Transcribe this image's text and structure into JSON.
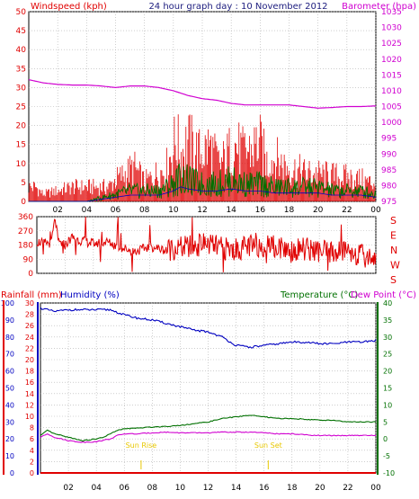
{
  "colors": {
    "wind": "#e00000",
    "gust": "#e00000",
    "wind_avg_green": "#007000",
    "wind_blue": "#0000c0",
    "baro": "#d000d0",
    "title": "#202080",
    "dir": "#e00000",
    "humidity": "#0000c0",
    "temperature": "#007000",
    "dewpoint": "#d000d0",
    "rain": "#e00000",
    "sun": "#e8c800",
    "grid": "#b0b0b0",
    "frame": "#000000"
  },
  "chart_data": [
    {
      "type": "line",
      "panel": "wind-baro",
      "title": "24 hour graph day : 10 November 2012",
      "left_label": "Windspeed (kph)",
      "right_label": "Barometer (hpa)",
      "ylim_left": [
        0,
        50
      ],
      "ylim_right": [
        975,
        1035
      ],
      "left_ticks": [
        "0",
        "5",
        "10",
        "15",
        "20",
        "25",
        "30",
        "35",
        "40",
        "45",
        "50"
      ],
      "right_ticks": [
        "975",
        "980",
        "985",
        "990",
        "995",
        "1000",
        "1005",
        "1010",
        "1015",
        "1020",
        "1025",
        "1030",
        "1035"
      ],
      "x_ticks": [
        "02",
        "04",
        "06",
        "08",
        "10",
        "12",
        "14",
        "16",
        "18",
        "20",
        "22",
        "00"
      ],
      "series": [
        {
          "name": "Barometer",
          "x": [
            0,
            1,
            2,
            3,
            4,
            5,
            6,
            7,
            8,
            9,
            10,
            11,
            12,
            13,
            14,
            15,
            16,
            17,
            18,
            19,
            20,
            21,
            22,
            23,
            24
          ],
          "values": [
            1013.5,
            1012.5,
            1012.0,
            1011.8,
            1011.8,
            1011.5,
            1011.0,
            1011.5,
            1011.5,
            1011.0,
            1010.0,
            1008.5,
            1007.5,
            1007.0,
            1006.0,
            1005.5,
            1005.5,
            1005.5,
            1005.5,
            1005.0,
            1004.5,
            1004.7,
            1005.0,
            1005.0,
            1005.2
          ]
        },
        {
          "name": "Gust",
          "x": [
            0.5,
            1.0,
            3.0,
            5.5,
            6.0,
            7.3,
            8.0,
            9.5,
            10.2,
            10.5,
            11.0,
            11.8,
            12.5,
            13.2,
            13.6,
            14.2,
            14.8,
            15.5,
            15.9,
            16.5,
            17.0,
            18.0,
            19.0,
            20.5,
            22.0,
            23.0,
            23.5
          ],
          "values": [
            6,
            3,
            6,
            6,
            9,
            14,
            8,
            14,
            26,
            20,
            25,
            20,
            23,
            15,
            18,
            24,
            20,
            22,
            25,
            16,
            18,
            14,
            12,
            11,
            10,
            9,
            8
          ]
        },
        {
          "name": "Wind",
          "x": [
            0,
            2,
            4,
            5,
            6,
            7,
            8,
            9,
            10,
            10.5,
            11,
            12,
            13,
            14,
            15,
            16,
            17,
            18,
            19,
            20,
            21,
            22,
            23,
            24
          ],
          "values": [
            0,
            0,
            0,
            1,
            2,
            3,
            3,
            3,
            5,
            7,
            6,
            5,
            5,
            6,
            5,
            5,
            4,
            4,
            4,
            4,
            3,
            3,
            3,
            2
          ]
        }
      ]
    },
    {
      "type": "line",
      "panel": "wind-direction",
      "ylim": [
        0,
        360
      ],
      "left_ticks": [
        "0",
        "90",
        "180",
        "270",
        "360"
      ],
      "right_labels": [
        "S",
        "E",
        "N",
        "W",
        "S"
      ],
      "x_ticks": [
        "02",
        "04",
        "06",
        "08",
        "10",
        "12",
        "14",
        "16",
        "18",
        "20",
        "22",
        "00"
      ],
      "series": [
        {
          "name": "Direction",
          "x": [
            0,
            1,
            1.3,
            1.5,
            2,
            2.5,
            3,
            4,
            5,
            6,
            7,
            8,
            9,
            10,
            11,
            12,
            13,
            14,
            15,
            16,
            17,
            18,
            19,
            20,
            21,
            22,
            23,
            24
          ],
          "values": [
            200,
            190,
            350,
            200,
            180,
            230,
            210,
            190,
            200,
            160,
            140,
            170,
            150,
            160,
            170,
            190,
            160,
            150,
            170,
            180,
            170,
            150,
            160,
            140,
            130,
            150,
            110,
            100
          ]
        }
      ]
    },
    {
      "type": "line",
      "panel": "temp-hum",
      "left_label_rain": "Rainfall (mm)",
      "left_label_hum": "Humidity (%)",
      "right_label_temp": "Temperature (°C)",
      "right_label_dew": "Dew Point (°C)",
      "rain_ticks": [
        "0",
        "2",
        "4",
        "6",
        "8",
        "10",
        "12",
        "14",
        "16",
        "18",
        "20",
        "22",
        "24",
        "26",
        "28",
        "30"
      ],
      "hum_ticks": [
        "0",
        "10",
        "20",
        "30",
        "40",
        "50",
        "60",
        "70",
        "80",
        "90",
        "100"
      ],
      "temp_ticks": [
        "-10",
        "-5",
        "0",
        "5",
        "10",
        "15",
        "20",
        "25",
        "30",
        "35",
        "40"
      ],
      "ylim_rain": [
        0,
        30
      ],
      "ylim_hum": [
        0,
        100
      ],
      "ylim_temp": [
        -10,
        40
      ],
      "x_ticks": [
        "02",
        "04",
        "06",
        "08",
        "10",
        "12",
        "14",
        "16",
        "18",
        "20",
        "22",
        "00"
      ],
      "sunrise": {
        "label": "Sun Rise",
        "hour": 7.2
      },
      "sunset": {
        "label": "Sun Set",
        "hour": 16.3
      },
      "series": [
        {
          "name": "Humidity",
          "x": [
            0,
            1,
            2,
            3,
            4,
            5,
            6,
            7,
            8,
            9,
            10,
            11,
            12,
            13,
            14,
            15,
            16,
            17,
            18,
            19,
            20,
            21,
            22,
            23,
            24
          ],
          "values": [
            97,
            95,
            96,
            96,
            96,
            96,
            93,
            91,
            90,
            88,
            86,
            84,
            83,
            80,
            75,
            74,
            75,
            76,
            77,
            77,
            76,
            76,
            77,
            77,
            78
          ]
        },
        {
          "name": "Temperature",
          "x": [
            0,
            0.5,
            1,
            2,
            3,
            4,
            4.5,
            5,
            5.5,
            6,
            7,
            8,
            9,
            10,
            11,
            12,
            13,
            14,
            15,
            16,
            17,
            18,
            19,
            20,
            21,
            22,
            23,
            24
          ],
          "values": [
            1.0,
            2.5,
            1.5,
            0.5,
            -0.5,
            0.0,
            0.5,
            1.5,
            2.5,
            3.0,
            3.2,
            3.5,
            3.7,
            4.0,
            4.5,
            5.0,
            6.0,
            6.5,
            7.0,
            6.5,
            6.0,
            6.0,
            5.8,
            5.5,
            5.5,
            5.0,
            5.0,
            5.0
          ]
        },
        {
          "name": "Dew Point",
          "x": [
            0,
            0.5,
            1,
            2,
            3,
            4,
            5,
            5.5,
            6,
            7,
            8,
            9,
            10,
            11,
            12,
            13,
            14,
            15,
            16,
            17,
            18,
            19,
            20,
            21,
            22,
            23,
            24
          ],
          "values": [
            0.5,
            1.5,
            0.5,
            -0.5,
            -1.0,
            -0.8,
            0.0,
            1.0,
            1.5,
            1.5,
            1.8,
            2.0,
            1.8,
            1.8,
            1.8,
            2.0,
            2.0,
            2.0,
            1.8,
            1.5,
            1.5,
            1.2,
            1.0,
            1.0,
            1.0,
            1.0,
            1.0
          ]
        },
        {
          "name": "Rainfall",
          "x": [
            0,
            24
          ],
          "values": [
            0,
            0
          ]
        }
      ]
    }
  ]
}
